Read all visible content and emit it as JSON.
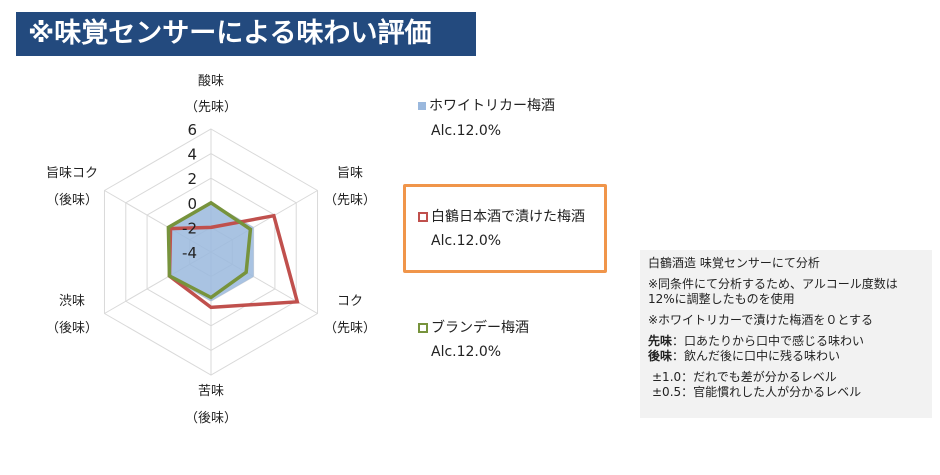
{
  "title": "※味覚センサーによる味わい評価",
  "chart_data": {
    "type": "radar",
    "axes": [
      {
        "label": "酸味",
        "sub": "（先味）"
      },
      {
        "label": "旨味",
        "sub": "（先味）"
      },
      {
        "label": "コク",
        "sub": "（先味）"
      },
      {
        "label": "苦味",
        "sub": "（後味）"
      },
      {
        "label": "渋味",
        "sub": "（後味）"
      },
      {
        "label": "旨味コク",
        "sub": "（後味）"
      }
    ],
    "rlim": [
      -4,
      6
    ],
    "ticks": [
      6,
      4,
      2,
      0,
      -2,
      -4
    ],
    "grid": true,
    "legend_position": "right",
    "series": [
      {
        "name": "ホワイトリカー梅酒",
        "note": "Alc.12.0%",
        "color": "#9ab8dd",
        "style": "filled",
        "values": [
          0,
          0,
          0,
          0,
          0,
          0
        ]
      },
      {
        "name": "白鶴日本酒で漬けた梅酒",
        "note": "Alc.12.0%",
        "color": "#c0504d",
        "style": "line",
        "values": [
          -2.0,
          1.9,
          4.1,
          0.5,
          -0.1,
          -0.2
        ]
      },
      {
        "name": "ブランデー梅酒",
        "note": "Alc.12.0%",
        "color": "#77933c",
        "style": "line",
        "values": [
          0,
          -0.3,
          -0.7,
          -0.3,
          -0.1,
          0
        ]
      }
    ]
  },
  "highlight_color": "#f0954a",
  "info": {
    "line1": "白鶴酒造 味覚センサーにて分析",
    "line2a": "※同条件にて分析するため、アルコール度数は",
    "line2b": "12%に調整したものを使用",
    "line3": "※ホワイトリカーで漬けた梅酒を０とする",
    "saki_label": "先味",
    "saki_text": "：口あたりから口中で感じる味わい",
    "ato_label": "後味",
    "ato_text": "：飲んだ後に口中に残る味わい",
    "level1": "±1.0：だれでも差が分かるレベル",
    "level2": "±0.5：官能慣れした人が分かるレベル"
  }
}
